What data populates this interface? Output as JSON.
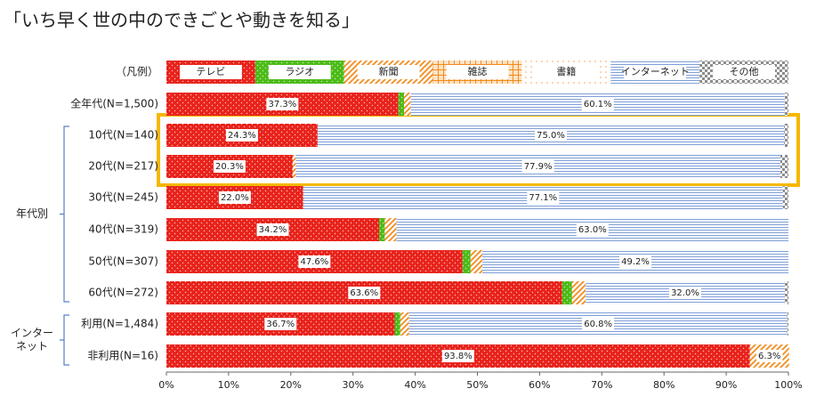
{
  "chart_data": {
    "type": "stacked-bar-horizontal",
    "title": "「いち早く世の中のできごとや動きを知る」",
    "legend_label": "（凡例）",
    "categories": [
      "全年代(N=1,500)",
      "10代(N=140)",
      "20代(N=217)",
      "30代(N=245)",
      "40代(N=319)",
      "50代(N=307)",
      "60代(N=272)",
      "利用(N=1,484)",
      "非利用(N=16)"
    ],
    "groups": [
      {
        "lines": [
          "年代別"
        ],
        "from": 1,
        "to": 6
      },
      {
        "lines": [
          "インター",
          "ネット"
        ],
        "from": 7,
        "to": 8
      }
    ],
    "series": [
      {
        "name": "テレビ",
        "color": "#e8231c",
        "pattern": "dots",
        "values": [
          37.3,
          24.3,
          20.3,
          22.0,
          34.2,
          47.6,
          63.6,
          36.7,
          93.8
        ],
        "value_labels": [
          "37.3%",
          "24.3%",
          "20.3%",
          "22.0%",
          "34.2%",
          "47.6%",
          "63.6%",
          "36.7%",
          "93.8%"
        ]
      },
      {
        "name": "ラジオ",
        "color": "#4cbb17",
        "pattern": "dots",
        "values": [
          0.9,
          0,
          0,
          0,
          0.9,
          1.3,
          1.6,
          0.9,
          0
        ]
      },
      {
        "name": "新聞",
        "color": "#f28c1e",
        "pattern": "hatch",
        "values": [
          1.1,
          0,
          0.5,
          0,
          1.9,
          1.9,
          2.2,
          1.4,
          6.3
        ],
        "value_labels": [
          null,
          null,
          null,
          null,
          null,
          null,
          null,
          null,
          "6.3%"
        ]
      },
      {
        "name": "雑誌",
        "color": "#f28c1e",
        "pattern": "grid",
        "values": [
          0,
          0,
          0,
          0,
          0,
          0,
          0,
          0,
          0
        ]
      },
      {
        "name": "書籍",
        "color": "#f5a550",
        "pattern": "sparse",
        "values": [
          0,
          0,
          0,
          0,
          0,
          0,
          0,
          0,
          0
        ]
      },
      {
        "name": "インターネット",
        "color": "#7f9fd8",
        "pattern": "hlines",
        "values": [
          60.1,
          75.0,
          77.9,
          77.1,
          63.0,
          49.2,
          32.0,
          60.8,
          0
        ],
        "value_labels": [
          "60.1%",
          "75.0%",
          "77.9%",
          "77.1%",
          "63.0%",
          "49.2%",
          "32.0%",
          "60.8%",
          null
        ]
      },
      {
        "name": "その他",
        "color": "#8c8c8c",
        "pattern": "checker",
        "values": [
          0.6,
          0.7,
          1.3,
          0.9,
          0,
          0,
          0.6,
          0.2,
          0
        ]
      }
    ],
    "xlim": [
      0,
      100
    ],
    "xticks": [
      {
        "value": 0,
        "label": "0%"
      },
      {
        "value": 10,
        "label": "10%"
      },
      {
        "value": 20,
        "label": "20%"
      },
      {
        "value": 30,
        "label": "30%"
      },
      {
        "value": 40,
        "label": "40%"
      },
      {
        "value": 50,
        "label": "50%"
      },
      {
        "value": 60,
        "label": "60%"
      },
      {
        "value": 70,
        "label": "70%"
      },
      {
        "value": 80,
        "label": "80%"
      },
      {
        "value": 90,
        "label": "90%"
      },
      {
        "value": 100,
        "label": "100%"
      }
    ]
  }
}
